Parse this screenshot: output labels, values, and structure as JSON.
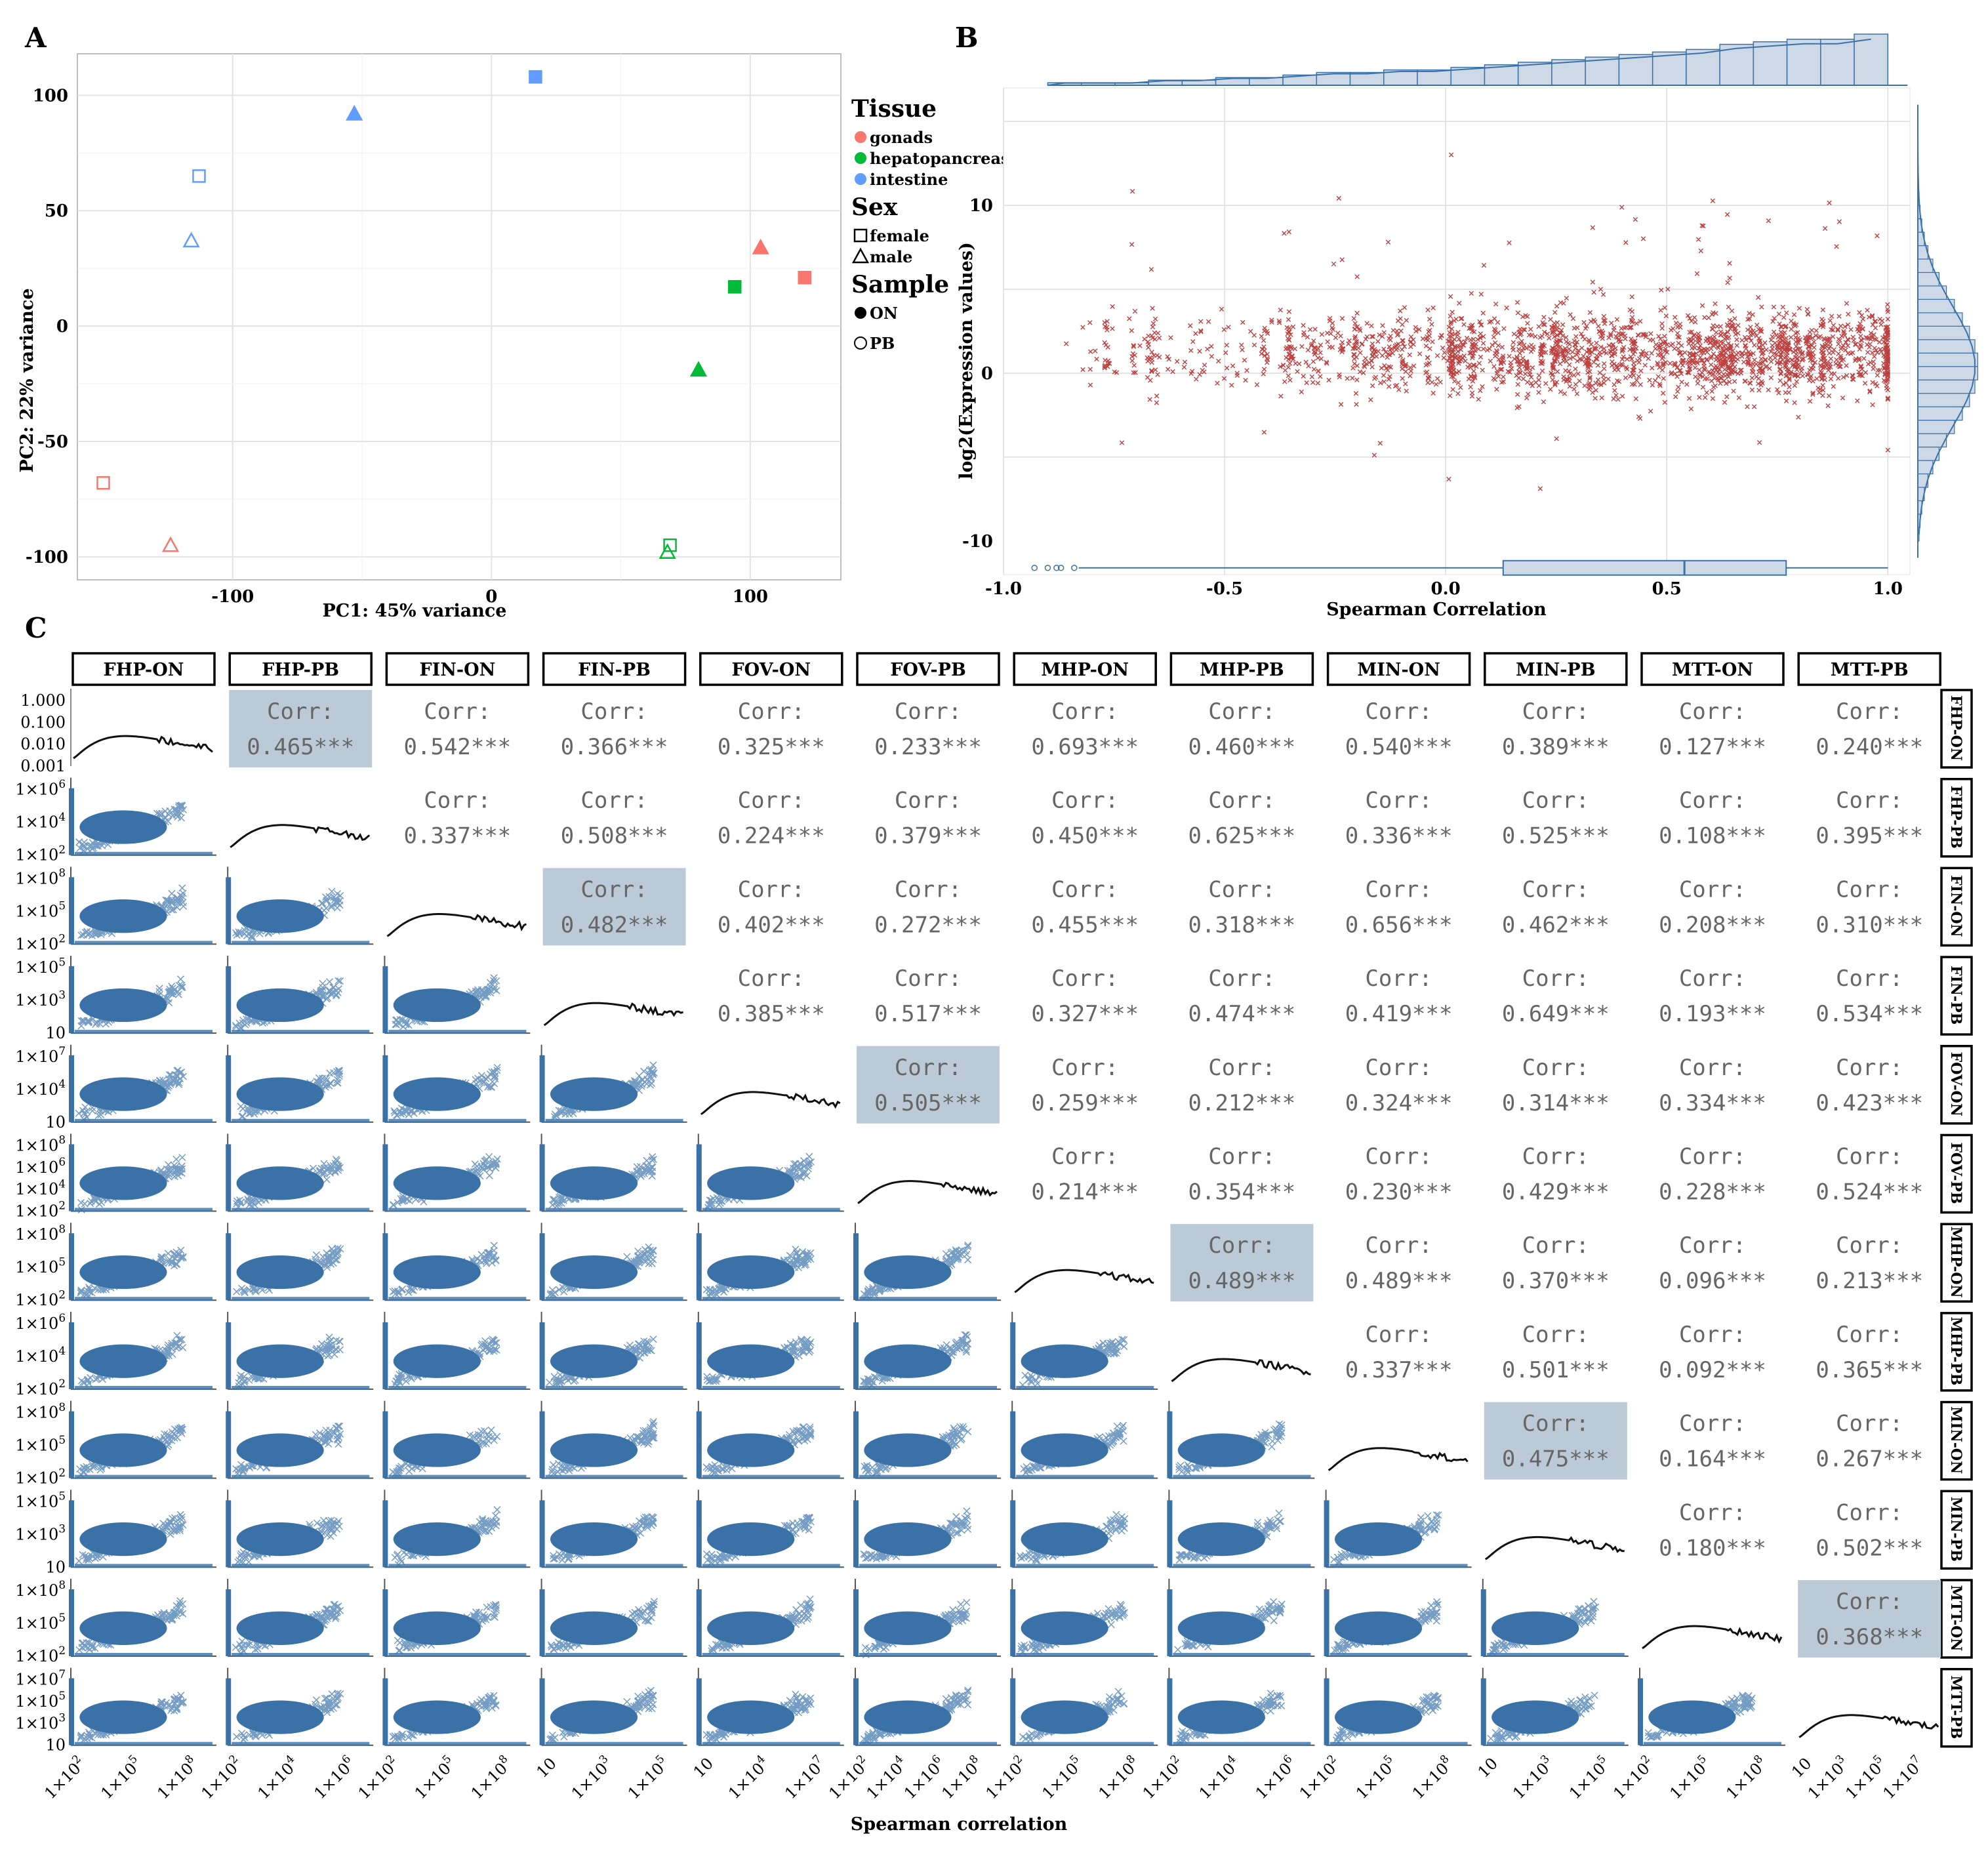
{
  "panels": {
    "a": "A",
    "b": "B",
    "c": "C"
  },
  "colors": {
    "gonads": "#f8766d",
    "hepatopancreas": "#00ba38",
    "intestine": "#619cff",
    "scatter_red": "#b22222",
    "steel_blue": "#3a72a8",
    "hist_fill": "#cdd9e6",
    "highlight": "#bccad8",
    "grid": "#e3e3e3",
    "corr_text": "#666666"
  },
  "chart_data": [
    {
      "id": "A",
      "type": "scatter",
      "title": "",
      "xlabel": "PC1: 45% variance",
      "ylabel": "PC2: 22% variance",
      "xlim": [
        -160,
        135
      ],
      "ylim": [
        -110,
        118
      ],
      "xticks": [
        -100,
        0,
        100
      ],
      "xtick_labels": [
        "-100",
        "0",
        "100"
      ],
      "yticks": [
        -100,
        -50,
        0,
        50,
        100
      ],
      "ytick_labels": [
        "-100",
        "-50",
        "0",
        "50",
        "100"
      ],
      "legend": {
        "position": "right",
        "groups": [
          {
            "title": "Tissue",
            "items": [
              {
                "label": "gonads",
                "symbol": "filled-circle",
                "color": "#f8766d"
              },
              {
                "label": "hepatopancreas",
                "symbol": "filled-circle",
                "color": "#00ba38"
              },
              {
                "label": "intestine",
                "symbol": "filled-circle",
                "color": "#619cff"
              }
            ]
          },
          {
            "title": "Sex",
            "items": [
              {
                "label": "female",
                "symbol": "square"
              },
              {
                "label": "male",
                "symbol": "triangle"
              }
            ]
          },
          {
            "title": "Sample",
            "items": [
              {
                "label": "ON",
                "symbol": "filled-circle"
              },
              {
                "label": "PB",
                "symbol": "open-circle"
              }
            ]
          }
        ]
      },
      "points": [
        {
          "x": 17,
          "y": 108,
          "tissue": "intestine",
          "sex": "female",
          "sample": "ON"
        },
        {
          "x": -53,
          "y": 92,
          "tissue": "intestine",
          "sex": "male",
          "sample": "ON"
        },
        {
          "x": -113,
          "y": 65,
          "tissue": "intestine",
          "sex": "female",
          "sample": "PB"
        },
        {
          "x": -116,
          "y": 37,
          "tissue": "intestine",
          "sex": "male",
          "sample": "PB"
        },
        {
          "x": 104,
          "y": 34,
          "tissue": "gonads",
          "sex": "male",
          "sample": "ON"
        },
        {
          "x": 121,
          "y": 21,
          "tissue": "gonads",
          "sex": "female",
          "sample": "ON"
        },
        {
          "x": 94,
          "y": 17,
          "tissue": "hepatopancreas",
          "sex": "female",
          "sample": "ON"
        },
        {
          "x": 80,
          "y": -19,
          "tissue": "hepatopancreas",
          "sex": "male",
          "sample": "ON"
        },
        {
          "x": -150,
          "y": -68,
          "tissue": "gonads",
          "sex": "female",
          "sample": "PB"
        },
        {
          "x": -124,
          "y": -95,
          "tissue": "gonads",
          "sex": "male",
          "sample": "PB"
        },
        {
          "x": 69,
          "y": -95,
          "tissue": "hepatopancreas",
          "sex": "female",
          "sample": "PB"
        },
        {
          "x": 68,
          "y": -98,
          "tissue": "hepatopancreas",
          "sex": "male",
          "sample": "PB"
        }
      ]
    },
    {
      "id": "B",
      "type": "scatter",
      "title": "",
      "xlabel": "Spearman Correlation",
      "ylabel": "log2(Expression values)",
      "xlim": [
        -1.0,
        1.05
      ],
      "ylim": [
        -12,
        17
      ],
      "xticks": [
        -1.0,
        -0.5,
        0.0,
        0.5,
        1.0
      ],
      "xtick_labels": [
        "-1.0",
        "-0.5",
        "0.0",
        "0.5",
        "1.0"
      ],
      "yticks": [
        -10,
        0,
        10
      ],
      "ytick_labels": [
        "-10",
        "0",
        "10"
      ],
      "marker": "x",
      "n_points_approx": 5000,
      "distribution": "points scattered densely in vertical bands; density increases towards correlation 1.0; expression mostly between -5 and 10",
      "x_histogram_counts": [
        1,
        1,
        1,
        2,
        2,
        3,
        3,
        4,
        5,
        5,
        6,
        6,
        7,
        8,
        9,
        10,
        11,
        12,
        13,
        14,
        16,
        17,
        18,
        18,
        20
      ],
      "y_histogram_range": [
        -12,
        17
      ],
      "y_histogram_peak": 0,
      "boxplot_x": {
        "q1": 0.13,
        "median": 0.54,
        "q3": 0.77,
        "whisker_low": -0.83,
        "whisker_high": 1.0,
        "outliers": [
          -0.93,
          -0.9,
          -0.88,
          -0.87,
          -0.84
        ]
      }
    },
    {
      "id": "C",
      "type": "scatter",
      "title": "",
      "xlabel": "Spearman correlation",
      "variables": [
        "FHP-ON",
        "FHP-PB",
        "FIN-ON",
        "FIN-PB",
        "FOV-ON",
        "FOV-PB",
        "MHP-ON",
        "MHP-PB",
        "MIN-ON",
        "MIN-PB",
        "MTT-ON",
        "MTT-PB"
      ],
      "row_labels": [
        "FHP-ON",
        "FHP-PB",
        "FIN-ON",
        "FIN-PB",
        "FOV-ON",
        "FOV-PB",
        "MHP-ON",
        "MHP-PB",
        "MIN-ON",
        "MIN-PB",
        "MTT-ON",
        "MTT-PB"
      ],
      "corr_label": "Corr:",
      "upper_correlations": {
        "r1": [
          null,
          "0.465***",
          "0.542***",
          "0.366***",
          "0.325***",
          "0.233***",
          "0.693***",
          "0.460***",
          "0.540***",
          "0.389***",
          "0.127***",
          "0.240***"
        ],
        "r2": [
          null,
          null,
          "0.337***",
          "0.508***",
          "0.224***",
          "0.379***",
          "0.450***",
          "0.625***",
          "0.336***",
          "0.525***",
          "0.108***",
          "0.395***"
        ],
        "r3": [
          null,
          null,
          null,
          "0.482***",
          "0.402***",
          "0.272***",
          "0.455***",
          "0.318***",
          "0.656***",
          "0.462***",
          "0.208***",
          "0.310***"
        ],
        "r4": [
          null,
          null,
          null,
          null,
          "0.385***",
          "0.517***",
          "0.327***",
          "0.474***",
          "0.419***",
          "0.649***",
          "0.193***",
          "0.534***"
        ],
        "r5": [
          null,
          null,
          null,
          null,
          null,
          "0.505***",
          "0.259***",
          "0.212***",
          "0.324***",
          "0.314***",
          "0.334***",
          "0.423***"
        ],
        "r6": [
          null,
          null,
          null,
          null,
          null,
          null,
          "0.214***",
          "0.354***",
          "0.230***",
          "0.429***",
          "0.228***",
          "0.524***"
        ],
        "r7": [
          null,
          null,
          null,
          null,
          null,
          null,
          null,
          "0.489***",
          "0.489***",
          "0.370***",
          "0.096***",
          "0.213***"
        ],
        "r8": [
          null,
          null,
          null,
          null,
          null,
          null,
          null,
          null,
          "0.337***",
          "0.501***",
          "0.092***",
          "0.365***"
        ],
        "r9": [
          null,
          null,
          null,
          null,
          null,
          null,
          null,
          null,
          null,
          "0.475***",
          "0.164***",
          "0.267***"
        ],
        "r10": [
          null,
          null,
          null,
          null,
          null,
          null,
          null,
          null,
          null,
          null,
          "0.180***",
          "0.502***"
        ],
        "r11": [
          null,
          null,
          null,
          null,
          null,
          null,
          null,
          null,
          null,
          null,
          null,
          "0.368***"
        ],
        "r12": [
          null,
          null,
          null,
          null,
          null,
          null,
          null,
          null,
          null,
          null,
          null,
          null
        ]
      },
      "highlighted_cells": [
        [
          0,
          1
        ],
        [
          2,
          3
        ],
        [
          4,
          5
        ],
        [
          6,
          7
        ],
        [
          8,
          9
        ],
        [
          10,
          11
        ]
      ],
      "row_yticks": [
        [
          "1.000",
          "0.100",
          "0.010",
          "0.001"
        ],
        [
          "1x10^6",
          "1x10^4",
          "1x10^2"
        ],
        [
          "1x10^8",
          "1x10^5",
          "1x10^2"
        ],
        [
          "1x10^5",
          "1x10^3",
          "10"
        ],
        [
          "1x10^7",
          "1x10^4",
          "10"
        ],
        [
          "1x10^8",
          "1x10^6",
          "1x10^4",
          "1x10^2"
        ],
        [
          "1x10^8",
          "1x10^5",
          "1x10^2"
        ],
        [
          "1x10^6",
          "1x10^4",
          "1x10^2"
        ],
        [
          "1x10^8",
          "1x10^5",
          "1x10^2"
        ],
        [
          "1x10^5",
          "1x10^3",
          "10"
        ],
        [
          "1x10^8",
          "1x10^5",
          "1x10^2"
        ],
        [
          "1x10^7",
          "1x10^5",
          "1x10^3",
          "10"
        ]
      ],
      "col_xticks": [
        [
          "1x10^2",
          "1x10^5",
          "1x10^8"
        ],
        [
          "1x10^2",
          "1x10^4",
          "1x10^6"
        ],
        [
          "1x10^2",
          "1x10^5",
          "1x10^8"
        ],
        [
          "10",
          "1x10^3",
          "1x10^5"
        ],
        [
          "10",
          "1x10^4",
          "1x10^7"
        ],
        [
          "1x10^2",
          "1x10^4",
          "1x10^6",
          "1x10^8"
        ],
        [
          "1x10^2",
          "1x10^5",
          "1x10^8"
        ],
        [
          "1x10^2",
          "1x10^4",
          "1x10^6"
        ],
        [
          "1x10^2",
          "1x10^5",
          "1x10^8"
        ],
        [
          "10",
          "1x10^3",
          "1x10^5"
        ],
        [
          "1x10^2",
          "1x10^5",
          "1x10^8"
        ],
        [
          "10",
          "1x10^3",
          "1x10^5",
          "1x10^7"
        ]
      ]
    }
  ]
}
